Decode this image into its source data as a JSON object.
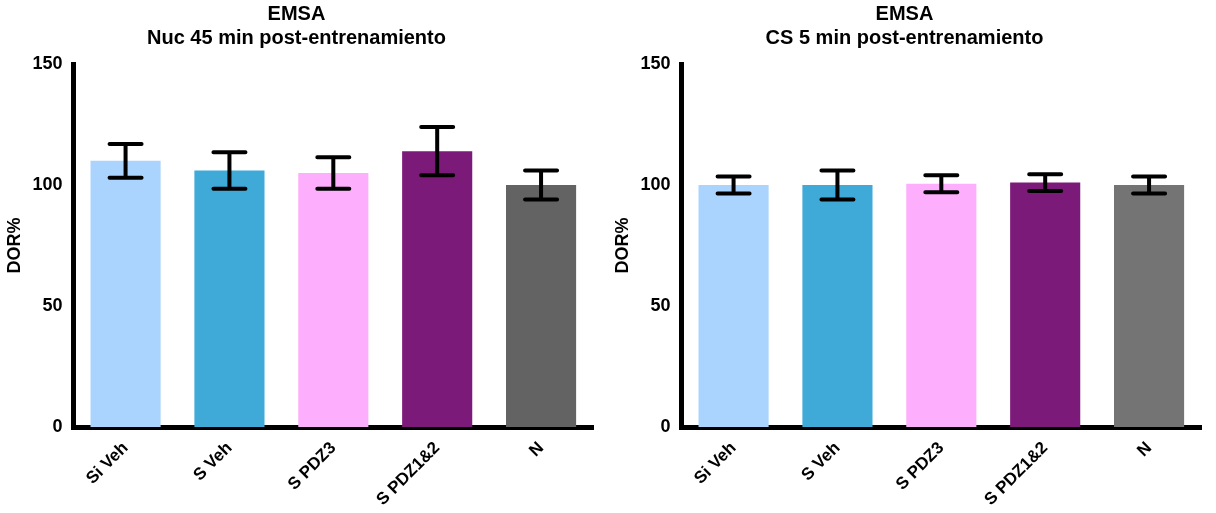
{
  "chart_data": [
    {
      "type": "bar",
      "title": "EMSA",
      "subtitle": "Nuc 45 min post-entrenamiento",
      "ylabel": "DOR%",
      "categories": [
        "Si Veh",
        "S Veh",
        "S PDZ3",
        "S PDZ1&2",
        "N"
      ],
      "values": [
        110,
        106,
        105,
        114,
        100
      ],
      "errors": [
        7,
        7.5,
        6.5,
        10,
        6
      ],
      "colors": [
        "#aad4fd",
        "#3fa9d8",
        "#fdaefd",
        "#7b1a78",
        "#636363"
      ],
      "ylim": [
        0,
        150
      ],
      "yticks": [
        0,
        50,
        100,
        150
      ],
      "grid": false,
      "legend": false
    },
    {
      "type": "bar",
      "title": "EMSA",
      "subtitle": "CS 5 min post-entrenamiento",
      "ylabel": "DOR%",
      "categories": [
        "Si Veh",
        "S Veh",
        "S PDZ3",
        "S PDZ1&2",
        "N"
      ],
      "values": [
        100,
        100,
        100.5,
        101,
        100
      ],
      "errors": [
        3.5,
        6,
        3.5,
        3.5,
        3.5
      ],
      "colors": [
        "#aad4fd",
        "#3fa9d8",
        "#fdaefd",
        "#7b1a78",
        "#747474"
      ],
      "ylim": [
        0,
        150
      ],
      "yticks": [
        0,
        50,
        100,
        150
      ],
      "grid": false,
      "legend": false
    }
  ]
}
